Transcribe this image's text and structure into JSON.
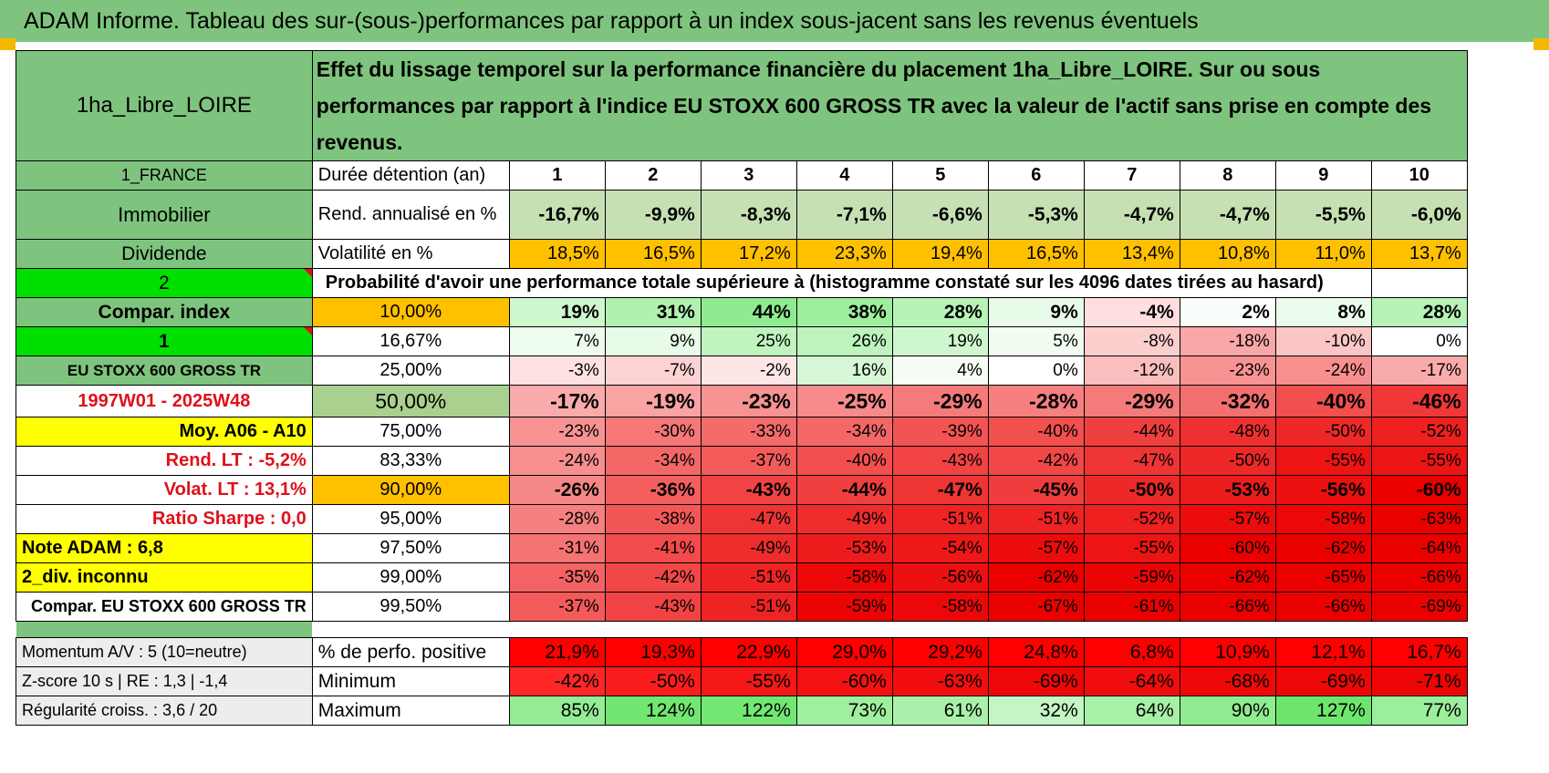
{
  "title": "ADAM Informe. Tableau des sur-(sous-)performances par rapport à un index sous-jacent sans les revenus éventuels",
  "left": {
    "name": "1ha_Libre_LOIRE",
    "country": "1_FRANCE",
    "category": "Immobilier",
    "dividend": "Dividende",
    "code2": "2",
    "compar_index": "Compar. index",
    "code1": "1",
    "index_name": "EU STOXX 600 GROSS TR",
    "period": "1997W01 - 2025W48",
    "moy": "Moy. A06 - A10",
    "rend_lt": "Rend. LT :    -5,2%",
    "volat_lt": "Volat. LT :    13,1%",
    "sharpe": "Ratio Sharpe :     0,0",
    "note": "Note ADAM : 6,8",
    "div_unknown": "2_div. inconnu",
    "compar_full": "Compar. EU STOXX 600 GROSS TR",
    "momentum": "Momentum A/V : 5 (10=neutre)",
    "zscore": "Z-score 10 s | RE : 1,3 | -1,4",
    "regularite": "Régularité croiss. : 3,6 / 20"
  },
  "description": "Effet du lissage temporel sur la performance financière du placement 1ha_Libre_LOIRE. Sur ou sous performances par rapport à l'indice EU STOXX 600 GROSS TR avec la valeur de l'actif sans prise en compte des revenus.",
  "holding_label": "Durée détention (an)",
  "years": [
    "1",
    "2",
    "3",
    "4",
    "5",
    "6",
    "7",
    "8",
    "9",
    "10"
  ],
  "rend_label": "Rend. annualisé en %",
  "rend": [
    "-16,7%",
    "-9,9%",
    "-8,3%",
    "-7,1%",
    "-6,6%",
    "-5,3%",
    "-4,7%",
    "-4,7%",
    "-5,5%",
    "-6,0%"
  ],
  "vol_label": "Volatilité en %",
  "vol": [
    "18,5%",
    "16,5%",
    "17,2%",
    "23,3%",
    "19,4%",
    "16,5%",
    "13,4%",
    "10,8%",
    "11,0%",
    "13,7%"
  ],
  "prob_label": "Probabilité d'avoir une performance totale supérieure à (histogramme constaté sur les 4096 dates tirées au hasard)",
  "quantiles": [
    {
      "p": "10,00%",
      "v": [
        "19%",
        "31%",
        "44%",
        "38%",
        "28%",
        "9%",
        "-4%",
        "2%",
        "8%",
        "28%"
      ]
    },
    {
      "p": "16,67%",
      "v": [
        "7%",
        "9%",
        "25%",
        "26%",
        "19%",
        "5%",
        "-8%",
        "-18%",
        "-10%",
        "0%"
      ]
    },
    {
      "p": "25,00%",
      "v": [
        "-3%",
        "-7%",
        "-2%",
        "16%",
        "4%",
        "0%",
        "-12%",
        "-23%",
        "-24%",
        "-17%"
      ]
    },
    {
      "p": "50,00%",
      "v": [
        "-17%",
        "-19%",
        "-23%",
        "-25%",
        "-29%",
        "-28%",
        "-29%",
        "-32%",
        "-40%",
        "-46%"
      ]
    },
    {
      "p": "75,00%",
      "v": [
        "-23%",
        "-30%",
        "-33%",
        "-34%",
        "-39%",
        "-40%",
        "-44%",
        "-48%",
        "-50%",
        "-52%"
      ]
    },
    {
      "p": "83,33%",
      "v": [
        "-24%",
        "-34%",
        "-37%",
        "-40%",
        "-43%",
        "-42%",
        "-47%",
        "-50%",
        "-55%",
        "-55%"
      ]
    },
    {
      "p": "90,00%",
      "v": [
        "-26%",
        "-36%",
        "-43%",
        "-44%",
        "-47%",
        "-45%",
        "-50%",
        "-53%",
        "-56%",
        "-60%"
      ]
    },
    {
      "p": "95,00%",
      "v": [
        "-28%",
        "-38%",
        "-47%",
        "-49%",
        "-51%",
        "-51%",
        "-52%",
        "-57%",
        "-58%",
        "-63%"
      ]
    },
    {
      "p": "97,50%",
      "v": [
        "-31%",
        "-41%",
        "-49%",
        "-53%",
        "-54%",
        "-57%",
        "-55%",
        "-60%",
        "-62%",
        "-64%"
      ]
    },
    {
      "p": "99,00%",
      "v": [
        "-35%",
        "-42%",
        "-51%",
        "-58%",
        "-56%",
        "-62%",
        "-59%",
        "-62%",
        "-65%",
        "-66%"
      ]
    },
    {
      "p": "99,50%",
      "v": [
        "-37%",
        "-43%",
        "-51%",
        "-59%",
        "-58%",
        "-67%",
        "-61%",
        "-66%",
        "-66%",
        "-69%"
      ]
    }
  ],
  "pos_label": "% de perfo. positive",
  "pos": [
    "21,9%",
    "19,3%",
    "22,9%",
    "29,0%",
    "29,2%",
    "24,8%",
    "6,8%",
    "10,9%",
    "12,1%",
    "16,7%"
  ],
  "min_label": "Minimum",
  "min": [
    "-42%",
    "-50%",
    "-55%",
    "-60%",
    "-63%",
    "-69%",
    "-64%",
    "-68%",
    "-69%",
    "-71%"
  ],
  "max_label": "Maximum",
  "max": [
    "85%",
    "124%",
    "122%",
    "73%",
    "61%",
    "32%",
    "64%",
    "90%",
    "127%",
    "77%"
  ],
  "colors": {
    "header_green": "#7ec47e",
    "bright_green": "#00e000",
    "yellow": "#ffff00",
    "orange": "#ffc000",
    "red_text": "#e0101a"
  }
}
